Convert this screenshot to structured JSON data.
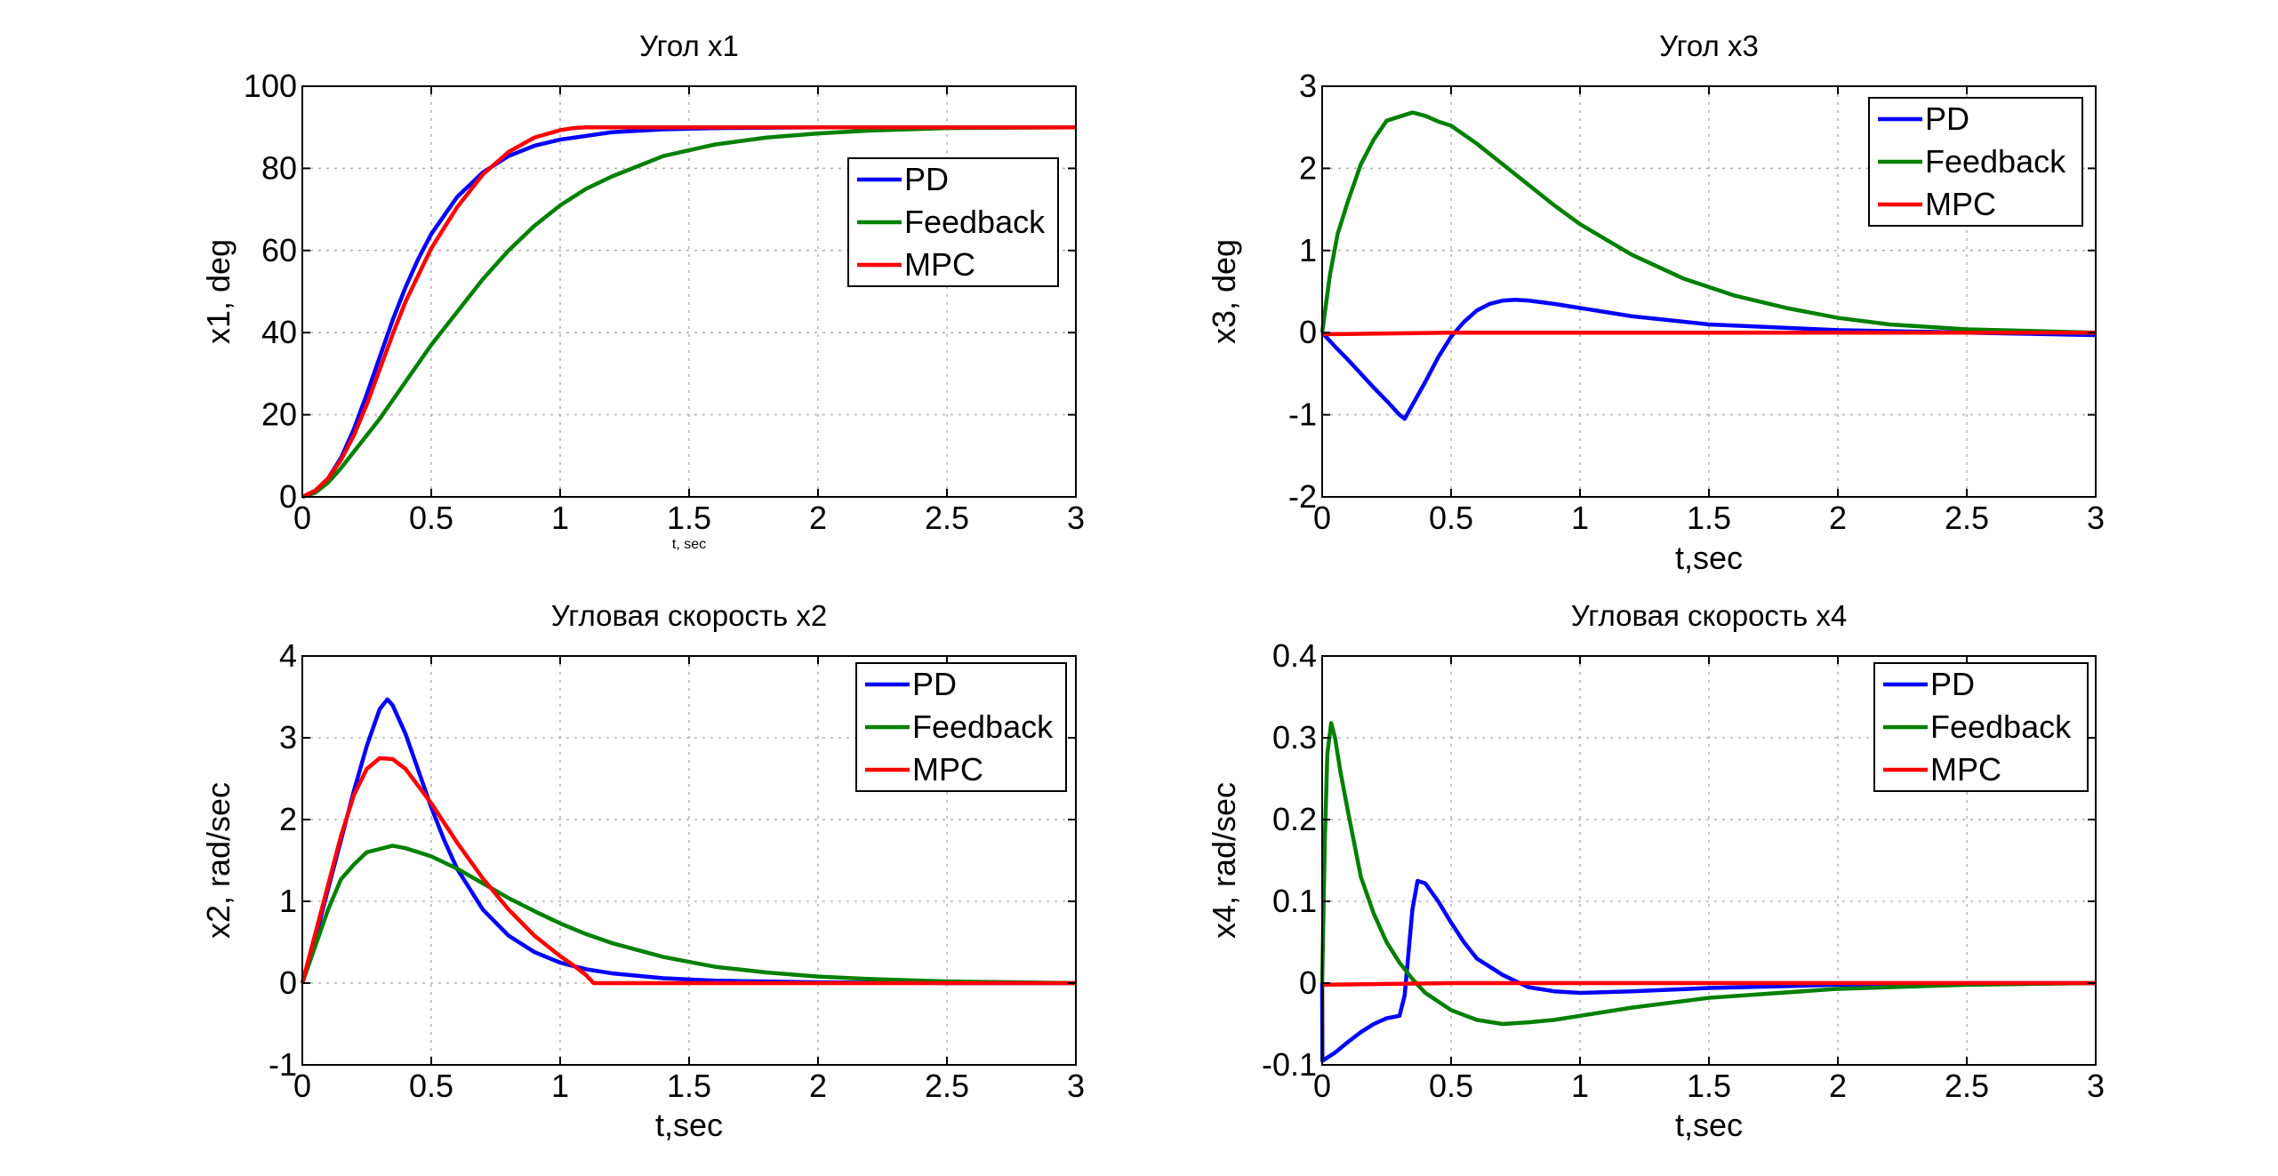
{
  "chart_data": [
    {
      "type": "line",
      "title": "Угол x1",
      "xlabel": "t, sec",
      "xlabel_small": true,
      "ylabel": "x1, deg",
      "xlim": [
        0,
        3
      ],
      "ylim": [
        0,
        100
      ],
      "xticks": [
        0,
        0.5,
        1,
        1.5,
        2,
        2.5,
        3
      ],
      "xtick_labels": [
        "0",
        "0.5",
        "1",
        "1.5",
        "2",
        "2.5",
        "3"
      ],
      "yticks": [
        0,
        20,
        40,
        60,
        80,
        100
      ],
      "ytick_labels": [
        "0",
        "20",
        "40",
        "60",
        "80",
        "100"
      ],
      "grid": true,
      "legend_position": "right",
      "series": [
        {
          "name": "PD",
          "color": "#0000ff",
          "x": [
            0,
            0.05,
            0.1,
            0.15,
            0.2,
            0.25,
            0.3,
            0.35,
            0.4,
            0.45,
            0.5,
            0.6,
            0.7,
            0.8,
            0.9,
            1.0,
            1.2,
            1.4,
            1.6,
            2.0,
            2.5,
            3.0
          ],
          "y": [
            0,
            1.5,
            4.5,
            9.5,
            16.5,
            25,
            34,
            43,
            51,
            58,
            64,
            73,
            79,
            83,
            85.5,
            87,
            88.8,
            89.5,
            89.8,
            90,
            90,
            90
          ]
        },
        {
          "name": "Feedback",
          "color": "#008000",
          "x": [
            0,
            0.05,
            0.1,
            0.15,
            0.2,
            0.3,
            0.4,
            0.5,
            0.6,
            0.7,
            0.8,
            0.9,
            1.0,
            1.1,
            1.2,
            1.4,
            1.6,
            1.8,
            2.0,
            2.2,
            2.5,
            3.0
          ],
          "y": [
            0,
            1,
            3.5,
            7,
            11,
            19,
            28,
            37,
            45,
            53,
            60,
            66,
            71,
            75,
            78,
            83,
            85.8,
            87.5,
            88.5,
            89.2,
            89.8,
            90
          ]
        },
        {
          "name": "MPC",
          "color": "#ff0000",
          "x": [
            0,
            0.05,
            0.1,
            0.15,
            0.2,
            0.25,
            0.3,
            0.35,
            0.4,
            0.5,
            0.6,
            0.7,
            0.8,
            0.9,
            1.0,
            1.05,
            1.1,
            1.15,
            1.5,
            2.0,
            2.5,
            3.0
          ],
          "y": [
            0,
            1.5,
            4.5,
            9,
            15,
            22.5,
            31,
            39.5,
            47.5,
            60.5,
            70.5,
            78.5,
            84,
            87.5,
            89.3,
            89.8,
            90,
            90,
            90,
            90,
            90,
            90
          ]
        }
      ]
    },
    {
      "type": "line",
      "title": "Угол x3",
      "xlabel": "t,sec",
      "ylabel": "x3, deg",
      "xlim": [
        0,
        3
      ],
      "ylim": [
        -2,
        3
      ],
      "xticks": [
        0,
        0.5,
        1,
        1.5,
        2,
        2.5,
        3
      ],
      "xtick_labels": [
        "0",
        "0.5",
        "1",
        "1.5",
        "2",
        "2.5",
        "3"
      ],
      "yticks": [
        -2,
        -1,
        0,
        1,
        2,
        3
      ],
      "ytick_labels": [
        "-2",
        "-1",
        "0",
        "1",
        "2",
        "3"
      ],
      "grid": true,
      "legend_position": "top-right",
      "series": [
        {
          "name": "PD",
          "color": "#0000ff",
          "x": [
            0,
            0.05,
            0.1,
            0.15,
            0.2,
            0.25,
            0.3,
            0.32,
            0.35,
            0.4,
            0.45,
            0.5,
            0.55,
            0.6,
            0.65,
            0.7,
            0.75,
            0.8,
            0.9,
            1.0,
            1.2,
            1.5,
            2.0,
            2.5,
            3.0
          ],
          "y": [
            0,
            -0.17,
            -0.33,
            -0.5,
            -0.67,
            -0.83,
            -1.0,
            -1.05,
            -0.88,
            -0.6,
            -0.3,
            -0.05,
            0.13,
            0.27,
            0.35,
            0.39,
            0.4,
            0.39,
            0.35,
            0.3,
            0.2,
            0.1,
            0.03,
            0.0,
            -0.03
          ]
        },
        {
          "name": "Feedback",
          "color": "#008000",
          "x": [
            0,
            0.03,
            0.06,
            0.1,
            0.15,
            0.2,
            0.25,
            0.3,
            0.35,
            0.4,
            0.45,
            0.5,
            0.6,
            0.7,
            0.8,
            0.9,
            1.0,
            1.2,
            1.4,
            1.6,
            1.8,
            2.0,
            2.2,
            2.5,
            3.0
          ],
          "y": [
            0,
            0.7,
            1.2,
            1.6,
            2.05,
            2.35,
            2.58,
            2.63,
            2.68,
            2.64,
            2.57,
            2.52,
            2.3,
            2.05,
            1.8,
            1.55,
            1.32,
            0.95,
            0.66,
            0.45,
            0.3,
            0.18,
            0.1,
            0.04,
            0.0
          ]
        },
        {
          "name": "MPC",
          "color": "#ff0000",
          "x": [
            0,
            0.5,
            1.0,
            1.5,
            2.0,
            2.5,
            3.0
          ],
          "y": [
            -0.02,
            0.0,
            0.0,
            0.0,
            0.0,
            0.0,
            0.0
          ]
        }
      ]
    },
    {
      "type": "line",
      "title": "Угловая скорость x2",
      "xlabel": "t,sec",
      "ylabel": "x2, rad/sec",
      "xlim": [
        0,
        3
      ],
      "ylim": [
        -1,
        4
      ],
      "xticks": [
        0,
        0.5,
        1,
        1.5,
        2,
        2.5,
        3
      ],
      "xtick_labels": [
        "0",
        "0.5",
        "1",
        "1.5",
        "2",
        "2.5",
        "3"
      ],
      "yticks": [
        -1,
        0,
        1,
        2,
        3,
        4
      ],
      "ytick_labels": [
        "-1",
        "0",
        "1",
        "2",
        "3",
        "4"
      ],
      "grid": true,
      "legend_position": "top-right",
      "series": [
        {
          "name": "PD",
          "color": "#0000ff",
          "x": [
            0,
            0.05,
            0.1,
            0.15,
            0.2,
            0.25,
            0.3,
            0.33,
            0.35,
            0.4,
            0.45,
            0.5,
            0.55,
            0.6,
            0.7,
            0.8,
            0.9,
            1.0,
            1.1,
            1.2,
            1.4,
            1.6,
            2.0,
            2.5,
            3.0
          ],
          "y": [
            0,
            0.55,
            1.15,
            1.75,
            2.35,
            2.9,
            3.35,
            3.47,
            3.4,
            3.05,
            2.6,
            2.15,
            1.75,
            1.4,
            0.9,
            0.58,
            0.38,
            0.25,
            0.17,
            0.12,
            0.06,
            0.03,
            0.01,
            0.0,
            0.0
          ]
        },
        {
          "name": "Feedback",
          "color": "#008000",
          "x": [
            0,
            0.05,
            0.1,
            0.15,
            0.2,
            0.25,
            0.3,
            0.35,
            0.4,
            0.5,
            0.6,
            0.7,
            0.8,
            0.9,
            1.0,
            1.1,
            1.2,
            1.4,
            1.6,
            1.8,
            2.0,
            2.2,
            2.5,
            3.0
          ],
          "y": [
            0,
            0.45,
            0.9,
            1.27,
            1.45,
            1.6,
            1.64,
            1.68,
            1.65,
            1.55,
            1.4,
            1.22,
            1.04,
            0.88,
            0.73,
            0.6,
            0.49,
            0.32,
            0.2,
            0.13,
            0.08,
            0.05,
            0.02,
            0.0
          ]
        },
        {
          "name": "MPC",
          "color": "#ff0000",
          "x": [
            0,
            0.05,
            0.1,
            0.15,
            0.2,
            0.25,
            0.3,
            0.35,
            0.4,
            0.5,
            0.6,
            0.7,
            0.8,
            0.9,
            1.0,
            1.05,
            1.1,
            1.13,
            1.2,
            1.5,
            2.0,
            2.5,
            3.0
          ],
          "y": [
            0,
            0.6,
            1.2,
            1.8,
            2.3,
            2.62,
            2.75,
            2.74,
            2.62,
            2.2,
            1.72,
            1.28,
            0.9,
            0.58,
            0.33,
            0.22,
            0.1,
            0.0,
            0.0,
            0.0,
            0.0,
            0.0,
            0.0
          ]
        }
      ]
    },
    {
      "type": "line",
      "title": "Угловая скорость x4",
      "xlabel": "t,sec",
      "ylabel": "x4, rad/sec",
      "xlim": [
        0,
        3
      ],
      "ylim": [
        -0.1,
        0.4
      ],
      "xticks": [
        0,
        0.5,
        1,
        1.5,
        2,
        2.5,
        3
      ],
      "xtick_labels": [
        "0",
        "0.5",
        "1",
        "1.5",
        "2",
        "2.5",
        "3"
      ],
      "yticks": [
        -0.1,
        0,
        0.1,
        0.2,
        0.3,
        0.4
      ],
      "ytick_labels": [
        "-0.1",
        "0",
        "0.1",
        "0.2",
        "0.3",
        "0.4"
      ],
      "grid": true,
      "legend_position": "top-right",
      "series": [
        {
          "name": "PD",
          "color": "#0000ff",
          "x": [
            0,
            0.001,
            0.05,
            0.1,
            0.15,
            0.2,
            0.25,
            0.3,
            0.32,
            0.35,
            0.37,
            0.4,
            0.45,
            0.5,
            0.55,
            0.6,
            0.7,
            0.8,
            0.9,
            1.0,
            1.2,
            1.5,
            2.0,
            2.5,
            3.0
          ],
          "y": [
            0,
            -0.095,
            -0.085,
            -0.072,
            -0.06,
            -0.05,
            -0.043,
            -0.04,
            -0.015,
            0.09,
            0.125,
            0.122,
            0.1,
            0.074,
            0.05,
            0.03,
            0.01,
            -0.005,
            -0.01,
            -0.012,
            -0.01,
            -0.006,
            -0.002,
            0.0,
            0.0
          ]
        },
        {
          "name": "Feedback",
          "color": "#008000",
          "x": [
            0,
            0.01,
            0.02,
            0.035,
            0.05,
            0.07,
            0.1,
            0.15,
            0.2,
            0.25,
            0.3,
            0.35,
            0.4,
            0.5,
            0.6,
            0.7,
            0.8,
            0.9,
            1.0,
            1.2,
            1.5,
            2.0,
            2.5,
            3.0
          ],
          "y": [
            0,
            0.17,
            0.28,
            0.318,
            0.3,
            0.26,
            0.21,
            0.13,
            0.085,
            0.05,
            0.025,
            0.005,
            -0.012,
            -0.033,
            -0.045,
            -0.05,
            -0.048,
            -0.045,
            -0.04,
            -0.03,
            -0.018,
            -0.007,
            -0.002,
            0.0
          ]
        },
        {
          "name": "MPC",
          "color": "#ff0000",
          "x": [
            0,
            0.5,
            1.0,
            1.5,
            2.0,
            2.5,
            3.0
          ],
          "y": [
            -0.002,
            0.0,
            0.0,
            0.0,
            0.0,
            0.0,
            0.0
          ]
        }
      ]
    }
  ]
}
